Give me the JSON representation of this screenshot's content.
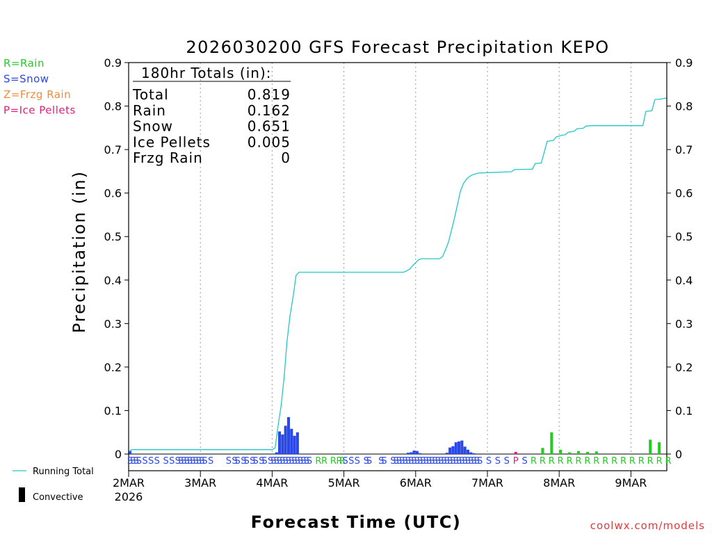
{
  "title": "2026030200 GFS Forecast Precipitation KEPO",
  "ylabel": "Precipitation (in)",
  "xlabel": "Forecast Time (UTC)",
  "credit": "coolwx.com/models",
  "legend_types": [
    {
      "text": "R=Rain",
      "color": "#22cc22"
    },
    {
      "text": "S=Snow",
      "color": "#2a48e6"
    },
    {
      "text": "Z=Frzg Rain",
      "color": "#f08a3c"
    },
    {
      "text": "P=Ice Pellets",
      "color": "#e0207a"
    }
  ],
  "legend_lines": [
    {
      "text": "Running Total",
      "color": "#22c7c7"
    },
    {
      "text": "Convective",
      "color": "#000000"
    }
  ],
  "totals_box": {
    "heading": "180hr Totals (in):",
    "rows": [
      {
        "label": "Total",
        "value": "0.819"
      },
      {
        "label": "Rain",
        "value": "0.162"
      },
      {
        "label": "Snow",
        "value": "0.651"
      },
      {
        "label": "Ice Pellets",
        "value": "0.005"
      },
      {
        "label": "Frzg Rain",
        "value": "0"
      }
    ]
  },
  "chart_data": {
    "type": "bar",
    "title": "2026030200 GFS Forecast Precipitation KEPO",
    "xlabel": "Forecast Time (UTC)",
    "ylabel": "Precipitation (in)",
    "ylim": [
      0,
      0.9
    ],
    "yticks": [
      "0",
      "0.1",
      "0.2",
      "0.3",
      "0.4",
      "0.5",
      "0.6",
      "0.7",
      "0.8",
      "0.9"
    ],
    "xlim_hours": [
      0,
      180
    ],
    "xticks": [
      {
        "hour": 0,
        "label": "2MAR"
      },
      {
        "hour": 24,
        "label": "3MAR"
      },
      {
        "hour": 48,
        "label": "4MAR"
      },
      {
        "hour": 72,
        "label": "5MAR"
      },
      {
        "hour": 96,
        "label": "6MAR"
      },
      {
        "hour": 120,
        "label": "7MAR"
      },
      {
        "hour": 144,
        "label": "8MAR"
      },
      {
        "hour": 168,
        "label": "9MAR"
      }
    ],
    "year_label": "2026",
    "series": [
      {
        "name": "Snow",
        "color": "#2a48e6",
        "points": [
          [
            0,
            0.007
          ],
          [
            49,
            0.004
          ],
          [
            50,
            0.052
          ],
          [
            51,
            0.045
          ],
          [
            52,
            0.065
          ],
          [
            53,
            0.085
          ],
          [
            54,
            0.058
          ],
          [
            55,
            0.042
          ],
          [
            56,
            0.05
          ],
          [
            93,
            0.003
          ],
          [
            94,
            0.004
          ],
          [
            95,
            0.008
          ],
          [
            96,
            0.007
          ],
          [
            97,
            0.002
          ],
          [
            106,
            0.003
          ],
          [
            107,
            0.015
          ],
          [
            108,
            0.018
          ],
          [
            109,
            0.027
          ],
          [
            110,
            0.029
          ],
          [
            111,
            0.031
          ],
          [
            112,
            0.017
          ],
          [
            113,
            0.01
          ],
          [
            114,
            0.004
          ],
          [
            115,
            0.002
          ]
        ]
      },
      {
        "name": "Ice Pellets",
        "color": "#e0207a",
        "points": [
          [
            129,
            0.005
          ]
        ]
      },
      {
        "name": "Rain",
        "color": "#22cc22",
        "points": [
          [
            138,
            0.014
          ],
          [
            141,
            0.05
          ],
          [
            144,
            0.01
          ],
          [
            147,
            0.004
          ],
          [
            150,
            0.007
          ],
          [
            153,
            0.005
          ],
          [
            156,
            0.006
          ],
          [
            174,
            0.033
          ],
          [
            177,
            0.027
          ]
        ]
      }
    ],
    "running_total": {
      "name": "Running Total",
      "color": "#22c7c7",
      "points": [
        [
          0,
          0.005
        ],
        [
          1,
          0.01
        ],
        [
          48,
          0.01
        ],
        [
          49,
          0.014
        ],
        [
          50,
          0.066
        ],
        [
          51,
          0.111
        ],
        [
          52,
          0.176
        ],
        [
          53,
          0.261
        ],
        [
          54,
          0.319
        ],
        [
          55,
          0.361
        ],
        [
          56,
          0.411
        ],
        [
          57,
          0.418
        ],
        [
          92,
          0.418
        ],
        [
          93,
          0.421
        ],
        [
          94,
          0.425
        ],
        [
          95,
          0.433
        ],
        [
          96,
          0.44
        ],
        [
          97,
          0.447
        ],
        [
          98,
          0.449
        ],
        [
          104,
          0.449
        ],
        [
          105,
          0.454
        ],
        [
          106,
          0.47
        ],
        [
          107,
          0.488
        ],
        [
          108,
          0.515
        ],
        [
          109,
          0.543
        ],
        [
          110,
          0.574
        ],
        [
          111,
          0.605
        ],
        [
          112,
          0.622
        ],
        [
          113,
          0.632
        ],
        [
          114,
          0.638
        ],
        [
          115,
          0.642
        ],
        [
          117,
          0.646
        ],
        [
          120,
          0.647
        ],
        [
          128,
          0.649
        ],
        [
          129,
          0.654
        ],
        [
          135,
          0.655
        ],
        [
          136,
          0.668
        ],
        [
          138,
          0.669
        ],
        [
          140,
          0.719
        ],
        [
          142,
          0.721
        ],
        [
          143,
          0.729
        ],
        [
          145,
          0.733
        ],
        [
          146,
          0.734
        ],
        [
          147,
          0.74
        ],
        [
          149,
          0.742
        ],
        [
          150,
          0.748
        ],
        [
          152,
          0.749
        ],
        [
          153,
          0.754
        ],
        [
          155,
          0.755
        ],
        [
          172,
          0.755
        ],
        [
          173,
          0.788
        ],
        [
          175,
          0.789
        ],
        [
          176,
          0.815
        ],
        [
          178,
          0.816
        ],
        [
          180,
          0.819
        ]
      ]
    },
    "precip_type_markers": [
      {
        "hour": 0,
        "type": "S"
      },
      {
        "hour": 1,
        "type": "S"
      },
      {
        "hour": 2,
        "type": "S"
      },
      {
        "hour": 3,
        "type": "S"
      },
      {
        "hour": 5,
        "type": "S"
      },
      {
        "hour": 7,
        "type": "S"
      },
      {
        "hour": 9,
        "type": "S"
      },
      {
        "hour": 12,
        "type": "S"
      },
      {
        "hour": 14,
        "type": "S"
      },
      {
        "hour": 16,
        "type": "S"
      },
      {
        "hour": 17,
        "type": "S"
      },
      {
        "hour": 18,
        "type": "S"
      },
      {
        "hour": 19,
        "type": "S"
      },
      {
        "hour": 20,
        "type": "S"
      },
      {
        "hour": 21,
        "type": "S"
      },
      {
        "hour": 22,
        "type": "S"
      },
      {
        "hour": 23,
        "type": "S"
      },
      {
        "hour": 24,
        "type": "S"
      },
      {
        "hour": 25,
        "type": "S"
      },
      {
        "hour": 27,
        "type": "S"
      },
      {
        "hour": 33,
        "type": "S"
      },
      {
        "hour": 35,
        "type": "S"
      },
      {
        "hour": 36,
        "type": "S"
      },
      {
        "hour": 38,
        "type": "S"
      },
      {
        "hour": 39,
        "type": "S"
      },
      {
        "hour": 41,
        "type": "S"
      },
      {
        "hour": 42,
        "type": "S"
      },
      {
        "hour": 44,
        "type": "S"
      },
      {
        "hour": 45,
        "type": "S"
      },
      {
        "hour": 47,
        "type": "S"
      },
      {
        "hour": 48,
        "type": "S"
      },
      {
        "hour": 49,
        "type": "S"
      },
      {
        "hour": 50,
        "type": "S"
      },
      {
        "hour": 51,
        "type": "S"
      },
      {
        "hour": 52,
        "type": "S"
      },
      {
        "hour": 53,
        "type": "S"
      },
      {
        "hour": 54,
        "type": "S"
      },
      {
        "hour": 55,
        "type": "S"
      },
      {
        "hour": 56,
        "type": "S"
      },
      {
        "hour": 57,
        "type": "S"
      },
      {
        "hour": 58,
        "type": "S"
      },
      {
        "hour": 59,
        "type": "S"
      },
      {
        "hour": 60,
        "type": "S"
      },
      {
        "hour": 63,
        "type": "R"
      },
      {
        "hour": 65,
        "type": "R"
      },
      {
        "hour": 68,
        "type": "R"
      },
      {
        "hour": 70,
        "type": "R"
      },
      {
        "hour": 71,
        "type": "R"
      },
      {
        "hour": 72,
        "type": "S"
      },
      {
        "hour": 74,
        "type": "S"
      },
      {
        "hour": 76,
        "type": "S"
      },
      {
        "hour": 79,
        "type": "S"
      },
      {
        "hour": 80,
        "type": "S"
      },
      {
        "hour": 84,
        "type": "S"
      },
      {
        "hour": 85,
        "type": "S"
      },
      {
        "hour": 88,
        "type": "S"
      },
      {
        "hour": 89,
        "type": "S"
      },
      {
        "hour": 90,
        "type": "S"
      },
      {
        "hour": 91,
        "type": "S"
      },
      {
        "hour": 92,
        "type": "S"
      },
      {
        "hour": 93,
        "type": "S"
      },
      {
        "hour": 94,
        "type": "S"
      },
      {
        "hour": 95,
        "type": "S"
      },
      {
        "hour": 96,
        "type": "S"
      },
      {
        "hour": 97,
        "type": "S"
      },
      {
        "hour": 98,
        "type": "S"
      },
      {
        "hour": 99,
        "type": "S"
      },
      {
        "hour": 100,
        "type": "S"
      },
      {
        "hour": 101,
        "type": "S"
      },
      {
        "hour": 102,
        "type": "S"
      },
      {
        "hour": 103,
        "type": "S"
      },
      {
        "hour": 104,
        "type": "S"
      },
      {
        "hour": 105,
        "type": "S"
      },
      {
        "hour": 106,
        "type": "S"
      },
      {
        "hour": 107,
        "type": "S"
      },
      {
        "hour": 108,
        "type": "S"
      },
      {
        "hour": 109,
        "type": "S"
      },
      {
        "hour": 110,
        "type": "S"
      },
      {
        "hour": 111,
        "type": "S"
      },
      {
        "hour": 112,
        "type": "S"
      },
      {
        "hour": 113,
        "type": "S"
      },
      {
        "hour": 114,
        "type": "S"
      },
      {
        "hour": 115,
        "type": "S"
      },
      {
        "hour": 116,
        "type": "S"
      },
      {
        "hour": 117,
        "type": "S"
      },
      {
        "hour": 120,
        "type": "S"
      },
      {
        "hour": 123,
        "type": "S"
      },
      {
        "hour": 126,
        "type": "S"
      },
      {
        "hour": 129,
        "type": "P"
      },
      {
        "hour": 132,
        "type": "S"
      },
      {
        "hour": 135,
        "type": "R"
      },
      {
        "hour": 138,
        "type": "R"
      },
      {
        "hour": 141,
        "type": "R"
      },
      {
        "hour": 144,
        "type": "R"
      },
      {
        "hour": 147,
        "type": "R"
      },
      {
        "hour": 150,
        "type": "R"
      },
      {
        "hour": 153,
        "type": "R"
      },
      {
        "hour": 156,
        "type": "R"
      },
      {
        "hour": 159,
        "type": "R"
      },
      {
        "hour": 162,
        "type": "R"
      },
      {
        "hour": 165,
        "type": "R"
      },
      {
        "hour": 168,
        "type": "R"
      },
      {
        "hour": 171,
        "type": "R"
      },
      {
        "hour": 174,
        "type": "R"
      },
      {
        "hour": 177,
        "type": "R"
      },
      {
        "hour": 180,
        "type": "R"
      }
    ]
  }
}
